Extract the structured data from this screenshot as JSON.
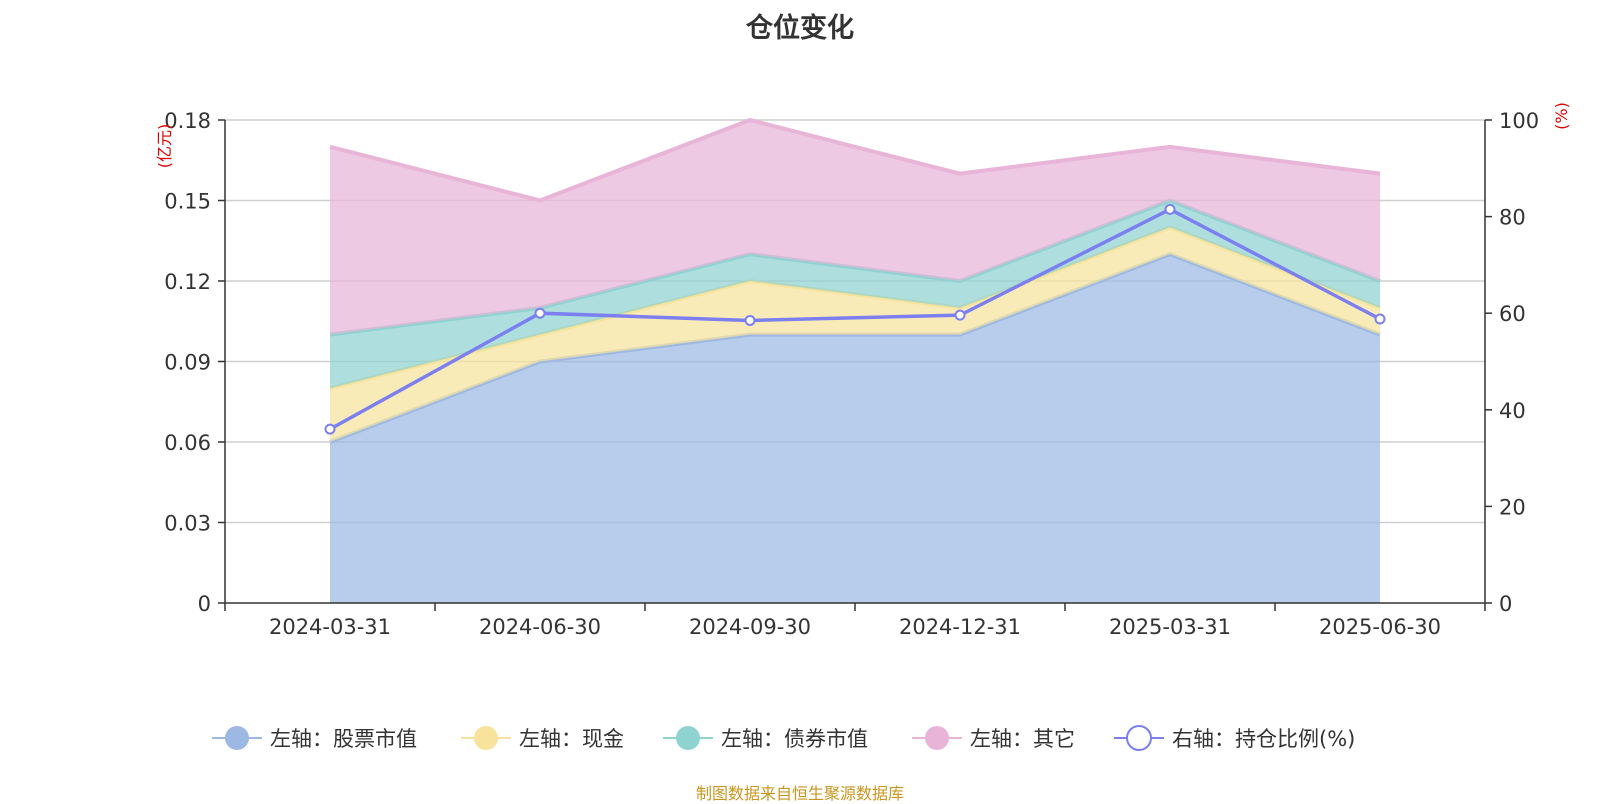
{
  "chart_data": {
    "type": "area",
    "title": "仓位变化",
    "categories": [
      "2024-03-31",
      "2024-06-30",
      "2024-09-30",
      "2024-12-31",
      "2025-03-31",
      "2025-06-30"
    ],
    "left_axis": {
      "unit": "(亿元)",
      "ylim": [
        0,
        0.18
      ],
      "ticks": [
        "0",
        "0.03",
        "0.06",
        "0.09",
        "0.12",
        "0.15",
        "0.18"
      ]
    },
    "right_axis": {
      "unit": "(%)",
      "ylim": [
        0,
        100
      ],
      "ticks": [
        "0",
        "20",
        "40",
        "60",
        "80",
        "100"
      ]
    },
    "stacked": true,
    "grid": true,
    "legend_position": "bottom",
    "series": [
      {
        "name": "左轴：股票市值",
        "axis": "left",
        "kind": "area",
        "color": "#9db9e3",
        "values": [
          0.06,
          0.09,
          0.1,
          0.1,
          0.13,
          0.1
        ]
      },
      {
        "name": "左轴：现金",
        "axis": "left",
        "kind": "area",
        "color": "#f7e39c",
        "values": [
          0.02,
          0.01,
          0.02,
          0.01,
          0.01,
          0.01
        ]
      },
      {
        "name": "左轴：债券市值",
        "axis": "left",
        "kind": "area",
        "color": "#8fd3d1",
        "values": [
          0.02,
          0.01,
          0.01,
          0.01,
          0.01,
          0.01
        ]
      },
      {
        "name": "左轴：其它",
        "axis": "left",
        "kind": "area",
        "color": "#e8b4d8",
        "values": [
          0.07,
          0.04,
          0.05,
          0.04,
          0.02,
          0.04
        ]
      },
      {
        "name": "右轴：持仓比例(%)",
        "axis": "right",
        "kind": "line",
        "color": "#7b7ff0",
        "values": [
          36,
          60,
          58.5,
          59.6,
          81.5,
          58.8
        ]
      }
    ]
  },
  "source_note": "制图数据来自恒生聚源数据库"
}
